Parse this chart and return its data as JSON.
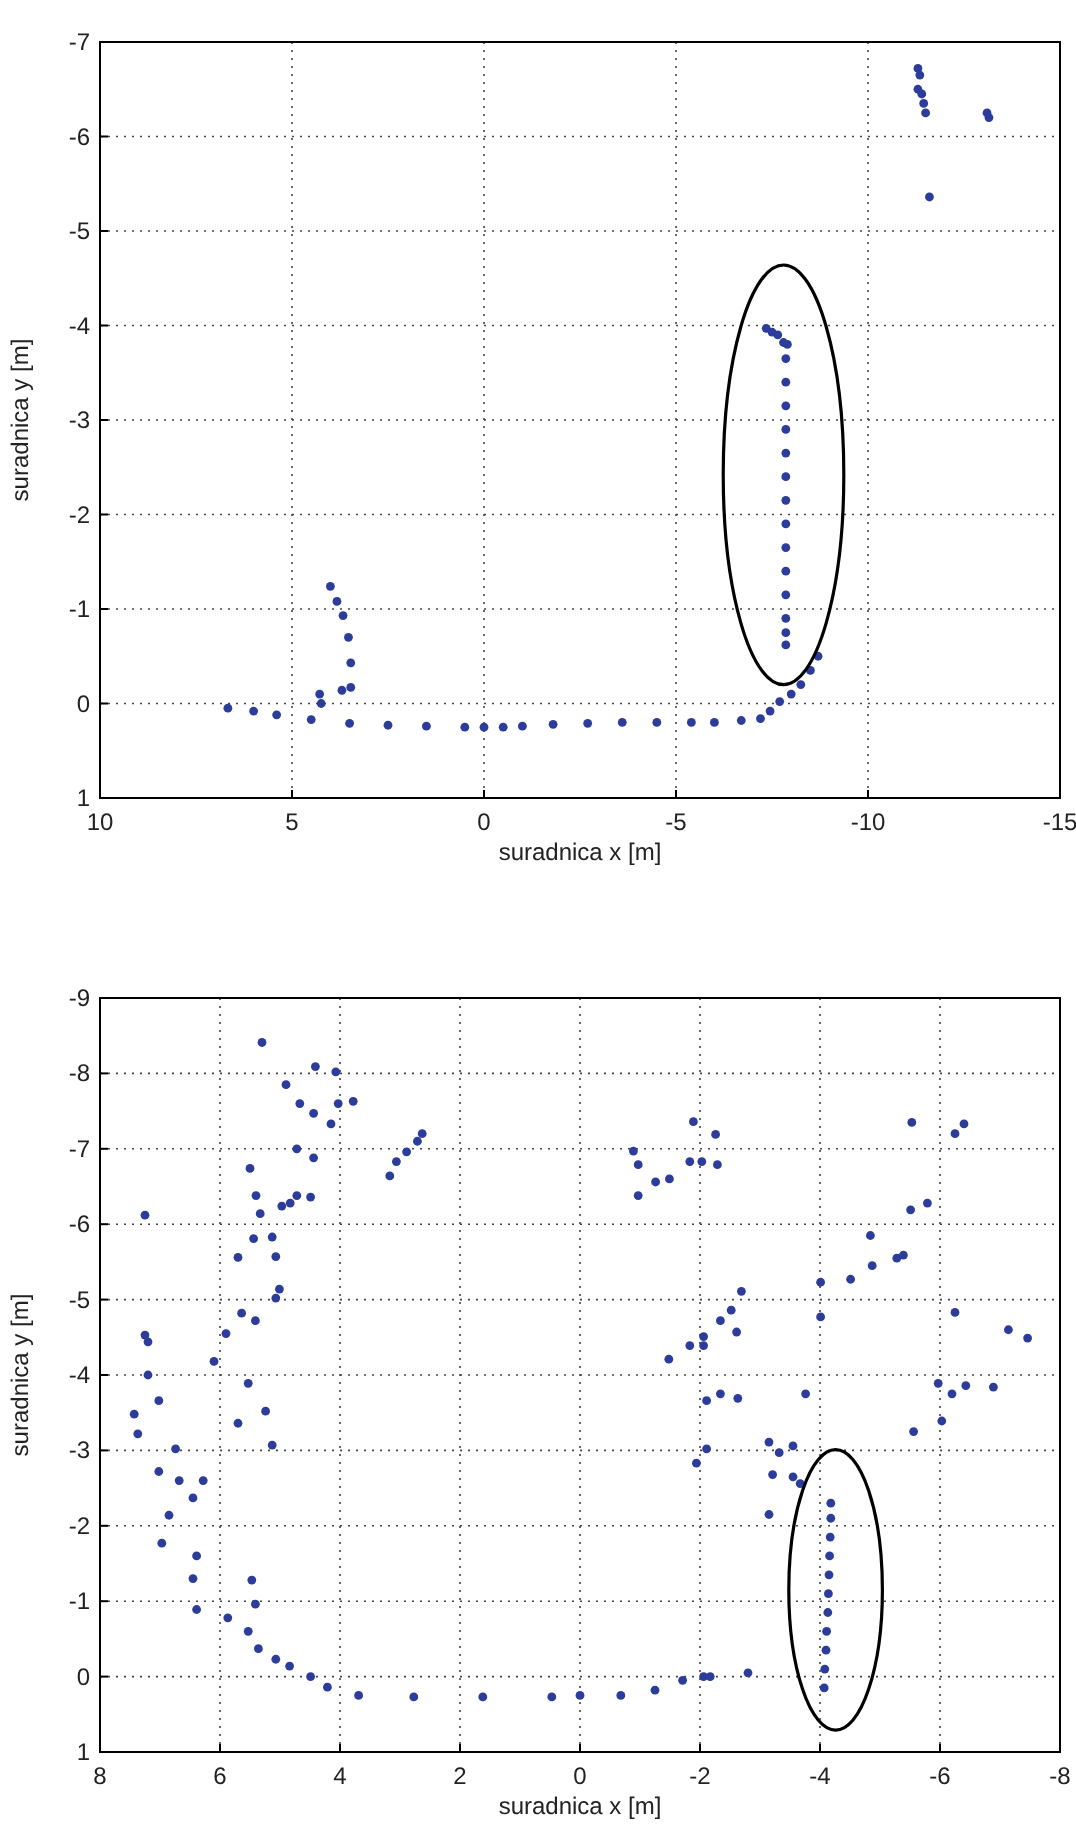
{
  "chart_data": [
    {
      "type": "scatter",
      "xlabel": "suradnica x [m]",
      "ylabel": "suradnica y [m]",
      "xlim": [
        10,
        -15
      ],
      "ylim": [
        1,
        -7
      ],
      "xticks": [
        10,
        5,
        0,
        -5,
        -10,
        -15
      ],
      "yticks": [
        1,
        0,
        -1,
        -2,
        -3,
        -4,
        -5,
        -6,
        -7
      ],
      "grid": true,
      "marker": "circle",
      "series": [
        {
          "color": "#2b3c9b",
          "x": [
            -11.3,
            -11.35,
            -11.3,
            -11.4,
            -11.45,
            -11.5,
            -13.1,
            -13.15,
            -11.6,
            -7.35,
            -7.5,
            -7.65,
            -7.8,
            -7.9,
            -7.86,
            -7.86,
            -7.86,
            -7.86,
            -7.86,
            -7.86,
            -7.86,
            -7.86,
            -7.86,
            -7.86,
            -7.86,
            -7.86,
            -7.86,
            -7.86,
            -8.7,
            -8.5,
            -8.25,
            -8.0,
            -7.7,
            -7.45,
            -7.2,
            4.0,
            3.83,
            3.67,
            3.53,
            3.47,
            3.47,
            3.7,
            4.28,
            4.24,
            6.67,
            6.0,
            5.4,
            4.5,
            3.5,
            2.5,
            1.5,
            0.5,
            0,
            -0.5,
            -1.0,
            -1.8,
            -2.7,
            -3.6,
            -4.5,
            -5.4,
            -6.0,
            -6.7
          ],
          "values": [
            -6.72,
            -6.65,
            -6.5,
            -6.45,
            -6.35,
            -6.25,
            -6.25,
            -6.2,
            -5.36,
            -3.97,
            -3.93,
            -3.9,
            -3.82,
            -3.8,
            -3.65,
            -3.4,
            -3.15,
            -2.9,
            -2.65,
            -2.4,
            -2.15,
            -1.9,
            -1.65,
            -1.4,
            -1.15,
            -0.9,
            -0.75,
            -0.62,
            -0.5,
            -0.35,
            -0.2,
            -0.1,
            -0.02,
            0.08,
            0.16,
            -1.24,
            -1.08,
            -0.93,
            -0.7,
            -0.43,
            -0.17,
            -0.14,
            -0.1,
            0.0,
            0.05,
            0.08,
            0.12,
            0.17,
            0.21,
            0.23,
            0.24,
            0.25,
            0.25,
            0.25,
            0.24,
            0.22,
            0.21,
            0.2,
            0.2,
            0.2,
            0.2,
            0.18
          ]
        }
      ]
    },
    {
      "type": "scatter",
      "xlabel": "suradnica x [m]",
      "ylabel": "suradnica y [m]",
      "xlim": [
        8,
        -8
      ],
      "ylim": [
        1,
        -9
      ],
      "xticks": [
        8,
        6,
        4,
        2,
        0,
        -2,
        -4,
        -6,
        -8
      ],
      "yticks": [
        1,
        0,
        -1,
        -2,
        -3,
        -4,
        -5,
        -6,
        -7,
        -8,
        -9
      ],
      "grid": true,
      "marker": "circle",
      "series": [
        {
          "color": "#2b3c9b",
          "x": [
            7.25,
            5.3,
            4.9,
            4.41,
            4.07,
            4.67,
            4.44,
            4.15,
            4.03,
            3.78,
            5.5,
            5.4,
            5.33,
            5.44,
            5.13,
            5.07,
            5.7,
            5.01,
            5.07,
            5.64,
            5.41,
            4.97,
            4.83,
            4.72,
            4.49,
            4.72,
            4.44,
            3.17,
            3.06,
            2.89,
            2.71,
            2.63,
            7.25,
            7.2,
            5.9,
            -0.89,
            -0.97,
            -0.97,
            -1.26,
            -1.49,
            -1.83,
            -1.89,
            -2.03,
            -2.29,
            -2.26,
            -4.01,
            -4.01,
            -4.51,
            -4.84,
            -4.87,
            -5.28,
            -5.39,
            -5.51,
            -5.79,
            -5.53,
            -6.25,
            -6.4,
            -6.25,
            -7.14,
            -7.46,
            -1.48,
            -1.83,
            -2.06,
            -2.34,
            -2.52,
            -2.69,
            -2.61,
            6.1,
            7.2,
            7.43,
            7.02,
            7.37,
            6.74,
            7.02,
            6.68,
            6.85,
            6.97,
            6.45,
            6.28,
            6.39,
            6.45,
            6.39,
            5.87,
            5.53,
            5.24,
            5.7,
            5.13,
            5.47,
            5.41,
            5.53,
            5.36,
            5.07,
            4.84,
            4.49,
            4.21,
            3.69,
            2.77,
            1.62,
            0.47,
            0,
            -0.68,
            -1.25,
            -1.71,
            -2.06,
            -2.17,
            -2.8,
            -2.06,
            -2.11,
            -2.34,
            -2.63,
            -1.94,
            -2.11,
            -3.15,
            -3.32,
            -3.55,
            -3.21,
            -3.55,
            -3.67,
            -3.15,
            -3.76,
            -5.56,
            -5.97,
            -6.03,
            -6.2,
            -6.43,
            -6.89,
            -4.07,
            -4.08,
            -4.1,
            -4.11,
            -4.13,
            -4.14,
            -4.15,
            -4.16,
            -4.17,
            -4.18,
            -4.18
          ],
          "values": [
            -6.12,
            -8.41,
            -7.85,
            -8.09,
            -8.02,
            -7.6,
            -7.47,
            -7.33,
            -7.6,
            -7.63,
            -6.74,
            -6.38,
            -6.14,
            -5.81,
            -5.83,
            -5.57,
            -5.56,
            -5.14,
            -5.02,
            -4.82,
            -4.72,
            -6.24,
            -6.28,
            -6.38,
            -6.36,
            -7.0,
            -6.88,
            -6.64,
            -6.83,
            -6.96,
            -7.1,
            -7.2,
            -4.53,
            -4.44,
            -4.55,
            -6.97,
            -6.79,
            -6.38,
            -6.56,
            -6.6,
            -6.83,
            -7.36,
            -6.83,
            -6.79,
            -7.19,
            -5.23,
            -4.77,
            -5.27,
            -5.85,
            -5.45,
            -5.55,
            -5.59,
            -6.19,
            -6.28,
            -7.35,
            -7.2,
            -7.33,
            -4.83,
            -4.6,
            -4.49,
            -4.21,
            -4.39,
            -4.51,
            -4.72,
            -4.86,
            -5.11,
            -4.57,
            -4.18,
            -4.0,
            -3.48,
            -3.66,
            -3.22,
            -3.02,
            -2.72,
            -2.6,
            -2.14,
            -1.77,
            -2.37,
            -2.6,
            -1.6,
            -1.3,
            -0.89,
            -0.78,
            -3.89,
            -3.52,
            -3.36,
            -3.07,
            -1.28,
            -0.96,
            -0.6,
            -0.37,
            -0.23,
            -0.14,
            0.0,
            0.14,
            0.25,
            0.27,
            0.27,
            0.27,
            0.25,
            0.25,
            0.18,
            0.05,
            0.0,
            0.0,
            -0.05,
            -4.39,
            -3.66,
            -3.75,
            -3.69,
            -2.83,
            -3.02,
            -3.11,
            -2.97,
            -3.06,
            -2.68,
            -2.65,
            -2.56,
            -2.15,
            -3.75,
            -3.25,
            -3.89,
            -3.39,
            -3.75,
            -3.86,
            -3.84,
            0.15,
            -0.1,
            -0.35,
            -0.6,
            -0.85,
            -1.1,
            -1.35,
            -1.6,
            -1.85,
            -2.1,
            -2.3
          ]
        }
      ]
    }
  ]
}
